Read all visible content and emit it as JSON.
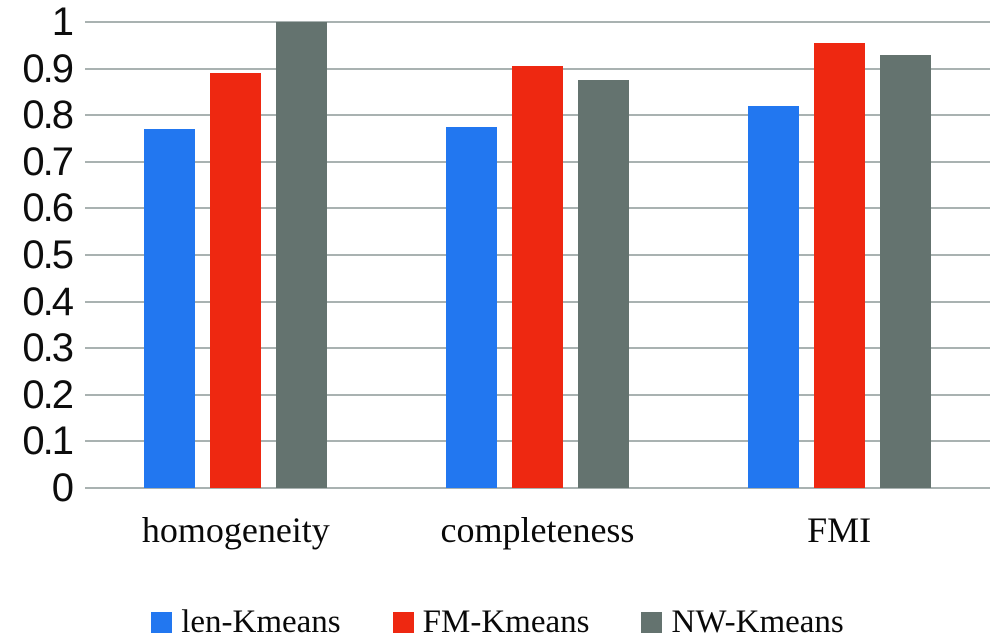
{
  "chart_data": {
    "type": "bar",
    "title": "",
    "xlabel": "",
    "ylabel": "",
    "categories": [
      "homogeneity",
      "completeness",
      "FMI"
    ],
    "series": [
      {
        "name": "len-Kmeans",
        "color": "#2277f0",
        "values": [
          0.77,
          0.775,
          0.82
        ]
      },
      {
        "name": "FM-Kmeans",
        "color": "#ee2811",
        "values": [
          0.89,
          0.905,
          0.955
        ]
      },
      {
        "name": "NW-Kmeans",
        "color": "#64736f",
        "values": [
          1.0,
          0.875,
          0.93
        ]
      }
    ],
    "ylim": [
      0,
      1
    ],
    "yticks": [
      0,
      0.1,
      0.2,
      0.3,
      0.4,
      0.5,
      0.6,
      0.7,
      0.8,
      0.9,
      1
    ],
    "ytick_labels": [
      "0",
      "0.1",
      "0.2",
      "0.3",
      "0.4",
      "0.5",
      "0.6",
      "0.7",
      "0.8",
      "0.9",
      "1"
    ],
    "grid": "horizontal",
    "gridline_color": "#a9b2b1",
    "legend_position": "bottom"
  }
}
